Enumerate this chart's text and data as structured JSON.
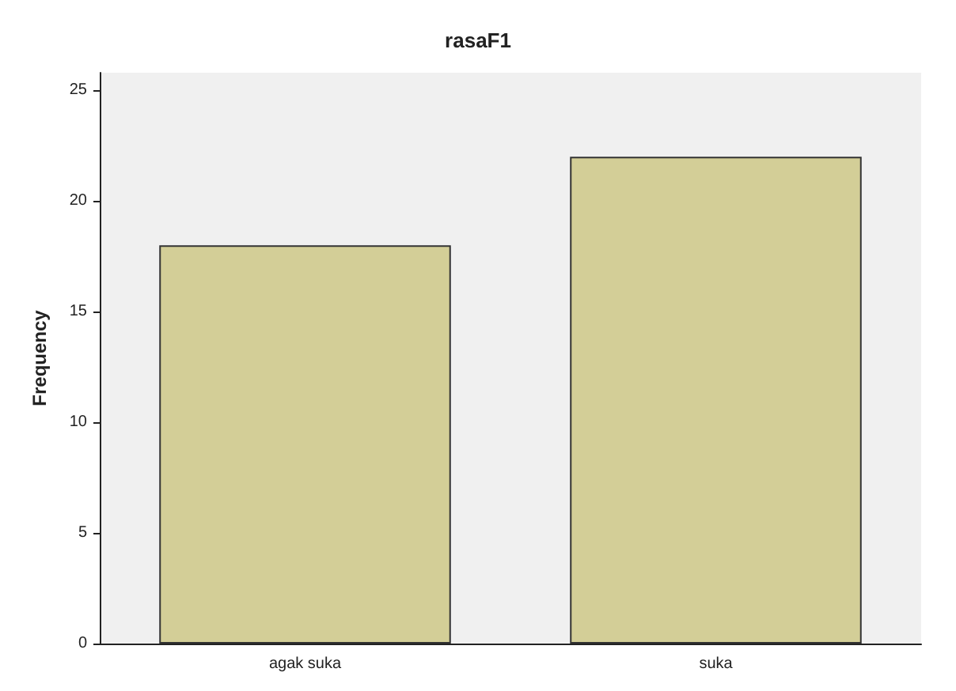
{
  "chart_data": {
    "type": "bar",
    "title": "rasaF1",
    "ylabel": "Frequency",
    "categories": [
      "agak suka",
      "suka"
    ],
    "values": [
      18,
      22
    ],
    "color": "#d3ce97",
    "ylim": [
      0,
      25.8
    ],
    "yticks": [
      0,
      5,
      10,
      15,
      20,
      25
    ],
    "grid": false
  }
}
